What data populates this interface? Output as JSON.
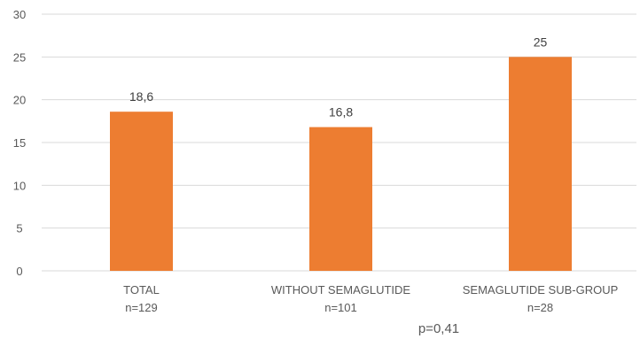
{
  "chart_data": {
    "type": "bar",
    "categories": [
      "TOTAL",
      "WITHOUT SEMAGLUTIDE",
      "SEMAGLUTIDE SUB-GROUP"
    ],
    "category_sublabels": [
      "n=129",
      "n=101",
      "n=28"
    ],
    "values": [
      18.6,
      16.8,
      25
    ],
    "data_labels": [
      "18,6",
      "16,8",
      "25"
    ],
    "ylim": [
      0,
      30
    ],
    "yticks": [
      0,
      5,
      10,
      15,
      20,
      25,
      30
    ],
    "grid": true,
    "bar_color": "#ED7D31",
    "grid_color": "#D9D9D9",
    "annotation": "p=0,41",
    "title": "",
    "xlabel": "",
    "ylabel": ""
  }
}
